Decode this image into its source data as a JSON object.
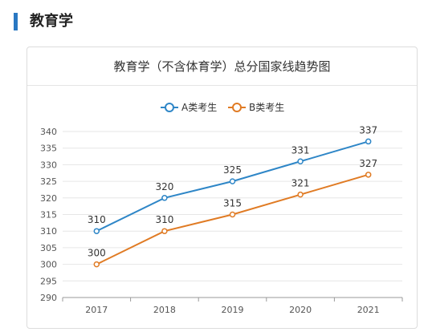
{
  "section": {
    "title": "教育学"
  },
  "colors": {
    "accent_bar": "#2a78c2",
    "series_a": "#2e86c7",
    "series_b": "#e07b24",
    "grid": "#e6e6e6",
    "axis": "#9a9a9a"
  },
  "chart_data": {
    "type": "line",
    "title": "教育学（不含体育学）总分国家线趋势图",
    "xlabel": "",
    "ylabel": "",
    "categories": [
      "2017",
      "2018",
      "2019",
      "2020",
      "2021"
    ],
    "ylim": [
      290,
      340
    ],
    "yticks": [
      290,
      295,
      300,
      305,
      310,
      315,
      320,
      325,
      330,
      335,
      340
    ],
    "grid": true,
    "legend_position": "top-center",
    "series": [
      {
        "name": "A类考生",
        "color": "#2e86c7",
        "values": [
          310,
          320,
          325,
          331,
          337
        ]
      },
      {
        "name": "B类考生",
        "color": "#e07b24",
        "values": [
          300,
          310,
          315,
          321,
          327
        ]
      }
    ]
  }
}
